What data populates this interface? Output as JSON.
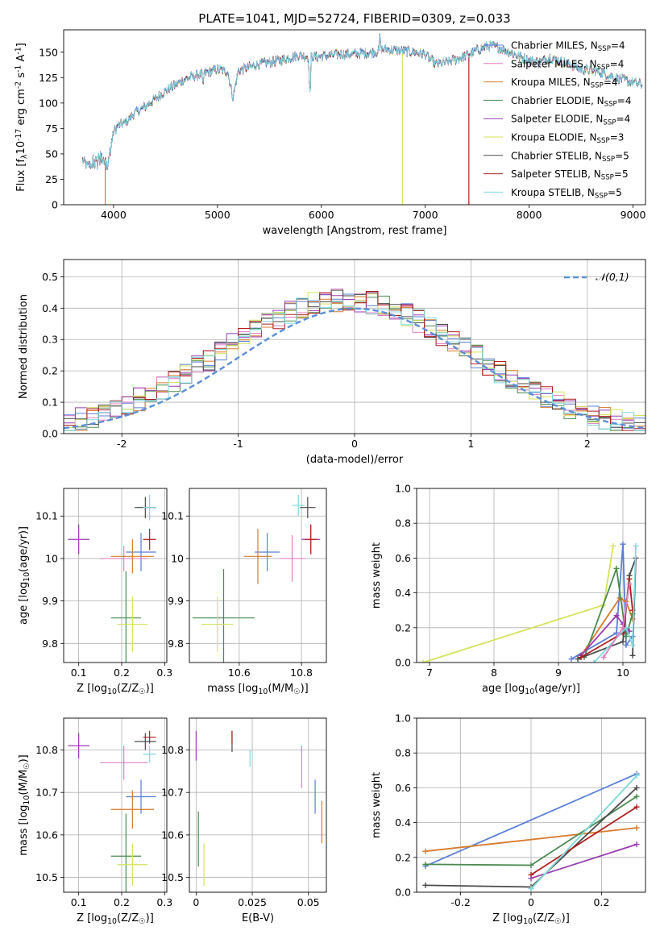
{
  "figure": {
    "title": "PLATE=1041, MJD=52724, FIBERID=0309, z=0.033"
  },
  "colors": {
    "Chabrier MILES": "#5b7fd6",
    "Salpeter MILES": "#e07fc0",
    "Kroupa MILES": "#d87a2a",
    "Chabrier ELODIE": "#4a8a50",
    "Salpeter ELODIE": "#9a3db0",
    "Kroupa ELODIE": "#d4e35a",
    "Chabrier STELIB": "#4a4a4a",
    "Salpeter STELIB": "#b01e1e",
    "Kroupa STELIB": "#7fd8e0",
    "gaussian": "#5b8fd6",
    "grid": "#b0b0b0"
  },
  "chart_data": [
    {
      "id": "spectrum",
      "type": "line",
      "title": "PLATE=1041, MJD=52724, FIBERID=0309, z=0.033",
      "xlabel": "wavelength [Angstrom, rest frame]",
      "ylabel": "Flux [f$_\\lambda$10$^{-17}$ erg cm$^{-2}$ s$^{-1}$ A$^{-1}$]",
      "xlim": [
        3520,
        9120
      ],
      "ylim": [
        0,
        172
      ],
      "xticks": [
        4000,
        5000,
        6000,
        7000,
        8000,
        9000
      ],
      "yticks": [
        0,
        25,
        50,
        75,
        100,
        125,
        150
      ],
      "grid": false,
      "legend_position": "top-right",
      "legend": [
        "Chabrier MILES, N$_{SSP}$=4",
        "Salpeter MILES, N$_{SSP}$=4",
        "Kroupa MILES, N$_{SSP}$=4",
        "Chabrier ELODIE, N$_{SSP}$=4",
        "Salpeter ELODIE, N$_{SSP}$=4",
        "Kroupa ELODIE, N$_{SSP}$=3",
        "Chabrier STELIB, N$_{SSP}$=5",
        "Salpeter STELIB, N$_{SSP}$=5",
        "Kroupa STELIB, N$_{SSP}$=5"
      ],
      "continuum": {
        "x": [
          3700,
          3750,
          3800,
          3850,
          3900,
          3950,
          4000,
          4050,
          4100,
          4150,
          4200,
          4300,
          4400,
          4500,
          4600,
          4700,
          4800,
          4900,
          5000,
          5100,
          5150,
          5200,
          5300,
          5400,
          5500,
          5600,
          5700,
          5800,
          5900,
          6000,
          6100,
          6200,
          6300,
          6400,
          6500,
          6600,
          6700,
          6800,
          6900,
          7000,
          7100,
          7200,
          7300,
          7400,
          7500,
          7600,
          7700,
          7800,
          7900,
          8000,
          8100,
          8200,
          8300,
          8400,
          8500,
          8600,
          8700,
          8800,
          8900,
          9000,
          9090
        ],
        "y": [
          44,
          38,
          40,
          43,
          44,
          42,
          72,
          78,
          80,
          84,
          90,
          96,
          104,
          112,
          118,
          124,
          127,
          130,
          133,
          131,
          105,
          132,
          135,
          138,
          140,
          142,
          145,
          147,
          145,
          146,
          147,
          148,
          148,
          149,
          150,
          153,
          152,
          151,
          150,
          148,
          138,
          140,
          143,
          147,
          152,
          156,
          155,
          151,
          146,
          142,
          140,
          145,
          141,
          138,
          133,
          132,
          130,
          126,
          123,
          120,
          118
        ]
      },
      "drops": [
        {
          "model": "Kroupa MILES",
          "x": 3920
        },
        {
          "model": "Kroupa ELODIE",
          "x": 6780
        },
        {
          "model": "Salpeter STELIB",
          "x": 7420
        }
      ]
    },
    {
      "id": "residuals",
      "type": "histogram",
      "xlabel": "(data-model)/error",
      "ylabel": "Normed distribution",
      "xlim": [
        -2.5,
        2.5
      ],
      "ylim": [
        0,
        0.555
      ],
      "xticks": [
        -2,
        -1,
        0,
        1,
        2
      ],
      "yticks": [
        0.0,
        0.1,
        0.2,
        0.3,
        0.4,
        0.5
      ],
      "grid": true,
      "legend_position": "top-right",
      "legend": [
        "$\\mathcal{N}(0,1)$"
      ],
      "bin_width": 0.1,
      "bin_start": -2.5
    },
    {
      "id": "age-Z",
      "type": "errorbar",
      "xlabel": "Z [log$_{10}$(Z/Z$_\\odot$)]",
      "ylabel": "age  [log$_{10}$(age/yr)]",
      "xlim": [
        0.065,
        0.305
      ],
      "ylim": [
        9.755,
        10.165
      ],
      "xticks": [
        0.1,
        0.2,
        0.3
      ],
      "yticks": [
        9.8,
        9.9,
        10.0,
        10.1
      ],
      "grid": true,
      "points": [
        {
          "model": "Chabrier MILES",
          "x": 0.245,
          "xerr": 0.035,
          "y": 10.015,
          "yerr": 0.045
        },
        {
          "model": "Salpeter MILES",
          "x": 0.205,
          "xerr": 0.055,
          "y": 10.0,
          "yerr": 0.03
        },
        {
          "model": "Kroupa MILES",
          "x": 0.225,
          "xerr": 0.05,
          "y": 10.005,
          "yerr": 0.04
        },
        {
          "model": "Chabrier ELODIE",
          "x": 0.21,
          "xerr": 0.035,
          "y": 9.86,
          "yerr": 0.11
        },
        {
          "model": "Salpeter ELODIE",
          "x": 0.1,
          "xerr": 0.025,
          "y": 10.045,
          "yerr": 0.035
        },
        {
          "model": "Kroupa ELODIE",
          "x": 0.225,
          "xerr": 0.035,
          "y": 9.845,
          "yerr": 0.065
        },
        {
          "model": "Chabrier STELIB",
          "x": 0.255,
          "xerr": 0.025,
          "y": 10.12,
          "yerr": 0.025
        },
        {
          "model": "Salpeter STELIB",
          "x": 0.265,
          "xerr": 0.015,
          "y": 10.045,
          "yerr": 0.025
        },
        {
          "model": "Kroupa STELIB",
          "x": 0.265,
          "xerr": 0.015,
          "y": 10.12,
          "yerr": 0.03
        }
      ]
    },
    {
      "id": "age-mass",
      "type": "errorbar",
      "xlabel": "mass [log$_{10}$(M/M$_\\odot$)]",
      "ylabel": "",
      "xlim": [
        10.44,
        10.88
      ],
      "ylim": [
        9.755,
        10.165
      ],
      "xticks": [
        10.6,
        10.8
      ],
      "yticks": [
        9.8,
        9.9,
        10.0,
        10.1
      ],
      "grid": true,
      "points": [
        {
          "model": "Chabrier MILES",
          "x": 10.69,
          "xerr": 0.04,
          "y": 10.015,
          "yerr": 0.045
        },
        {
          "model": "Salpeter MILES",
          "x": 10.77,
          "xerr": 0.04,
          "y": 10.0,
          "yerr": 0.055
        },
        {
          "model": "Kroupa MILES",
          "x": 10.66,
          "xerr": 0.045,
          "y": 10.005,
          "yerr": 0.065
        },
        {
          "model": "Chabrier ELODIE",
          "x": 10.55,
          "xerr": 0.1,
          "y": 9.86,
          "yerr": 0.115
        },
        {
          "model": "Salpeter ELODIE",
          "x": 10.83,
          "xerr": 0.03,
          "y": 10.045,
          "yerr": 0.035
        },
        {
          "model": "Kroupa ELODIE",
          "x": 10.53,
          "xerr": 0.05,
          "y": 9.845,
          "yerr": 0.065
        },
        {
          "model": "Chabrier STELIB",
          "x": 10.82,
          "xerr": 0.025,
          "y": 10.12,
          "yerr": 0.025
        },
        {
          "model": "Salpeter STELIB",
          "x": 10.83,
          "xerr": 0.02,
          "y": 10.045,
          "yerr": 0.035
        },
        {
          "model": "Kroupa STELIB",
          "x": 10.79,
          "xerr": 0.02,
          "y": 10.125,
          "yerr": 0.025
        }
      ]
    },
    {
      "id": "mass-Z",
      "type": "errorbar",
      "xlabel": "Z [log$_{10}$(Z/Z$_\\odot$)]",
      "ylabel": "mass [log$_{10}$(M/M$_\\odot$)]",
      "xlim": [
        0.065,
        0.305
      ],
      "ylim": [
        10.465,
        10.875
      ],
      "xticks": [
        0.1,
        0.2,
        0.3
      ],
      "yticks": [
        10.5,
        10.6,
        10.7,
        10.8
      ],
      "grid": true,
      "points": [
        {
          "model": "Chabrier MILES",
          "x": 0.245,
          "xerr": 0.035,
          "y": 10.69,
          "yerr": 0.04
        },
        {
          "model": "Salpeter MILES",
          "x": 0.205,
          "xerr": 0.055,
          "y": 10.77,
          "yerr": 0.04
        },
        {
          "model": "Kroupa MILES",
          "x": 0.225,
          "xerr": 0.05,
          "y": 10.66,
          "yerr": 0.045
        },
        {
          "model": "Chabrier ELODIE",
          "x": 0.21,
          "xerr": 0.035,
          "y": 10.55,
          "yerr": 0.1
        },
        {
          "model": "Salpeter ELODIE",
          "x": 0.1,
          "xerr": 0.025,
          "y": 10.81,
          "yerr": 0.03
        },
        {
          "model": "Kroupa ELODIE",
          "x": 0.225,
          "xerr": 0.035,
          "y": 10.53,
          "yerr": 0.05
        },
        {
          "model": "Chabrier STELIB",
          "x": 0.255,
          "xerr": 0.025,
          "y": 10.82,
          "yerr": 0.02
        },
        {
          "model": "Salpeter STELIB",
          "x": 0.265,
          "xerr": 0.015,
          "y": 10.83,
          "yerr": 0.015
        },
        {
          "model": "Kroupa STELIB",
          "x": 0.265,
          "xerr": 0.015,
          "y": 10.79,
          "yerr": 0.02
        }
      ]
    },
    {
      "id": "mass-ebv",
      "type": "errorbar",
      "xlabel": "E(B-V)",
      "ylabel": "",
      "xlim": [
        -0.003,
        0.058
      ],
      "ylim": [
        10.465,
        10.875
      ],
      "xticks": [
        0.0,
        0.025,
        0.05
      ],
      "yticks": [
        10.5,
        10.6,
        10.7,
        10.8
      ],
      "grid": true,
      "points": [
        {
          "model": "Chabrier MILES",
          "x": 0.053,
          "y": 10.69,
          "yerr": 0.04
        },
        {
          "model": "Salpeter MILES",
          "x": 0.047,
          "y": 10.76,
          "yerr": 0.05
        },
        {
          "model": "Kroupa MILES",
          "x": 0.056,
          "y": 10.63,
          "yerr": 0.05
        },
        {
          "model": "Chabrier ELODIE",
          "x": 0.001,
          "y": 10.59,
          "yerr": 0.065
        },
        {
          "model": "Salpeter ELODIE",
          "x": 0.0,
          "y": 10.81,
          "yerr": 0.035
        },
        {
          "model": "Kroupa ELODIE",
          "x": 0.0035,
          "y": 10.53,
          "yerr": 0.05
        },
        {
          "model": "Chabrier STELIB",
          "x": 0.016,
          "y": 10.82,
          "yerr": 0.025
        },
        {
          "model": "Salpeter STELIB",
          "x": 0.016,
          "y": 10.83,
          "yerr": 0.015
        },
        {
          "model": "Kroupa STELIB",
          "x": 0.024,
          "y": 10.78,
          "yerr": 0.02
        }
      ]
    },
    {
      "id": "mw-age",
      "type": "line",
      "xlabel": "age  [log$_{10}$(age/yr)]",
      "ylabel": "mass weight",
      "xlim": [
        6.8,
        10.35
      ],
      "ylim": [
        0,
        1.0
      ],
      "xticks": [
        7,
        8,
        9,
        10
      ],
      "yticks": [
        0.0,
        0.2,
        0.4,
        0.6,
        0.8,
        1.0
      ],
      "grid": true,
      "series": [
        {
          "name": "Kroupa ELODIE",
          "x": [
            6.9,
            9.7,
            9.85
          ],
          "y": [
            0.0,
            0.33,
            0.67
          ]
        },
        {
          "name": "Chabrier MILES",
          "x": [
            9.2,
            9.9,
            10.0,
            10.05,
            10.15
          ],
          "y": [
            0.02,
            0.17,
            0.68,
            0.1,
            0.15
          ]
        },
        {
          "name": "Kroupa MILES",
          "x": [
            9.35,
            9.95,
            10.05,
            10.15
          ],
          "y": [
            0.04,
            0.37,
            0.35,
            0.25
          ]
        },
        {
          "name": "Chabrier ELODIE",
          "x": [
            9.4,
            9.9,
            10.05,
            10.15
          ],
          "y": [
            0.03,
            0.54,
            0.15,
            0.28
          ]
        },
        {
          "name": "Salpeter ELODIE",
          "x": [
            9.35,
            9.9,
            10.0,
            10.1
          ],
          "y": [
            0.04,
            0.27,
            0.22,
            0.18
          ]
        },
        {
          "name": "Chabrier STELIB",
          "x": [
            9.3,
            10.0,
            10.1,
            10.2,
            10.15
          ],
          "y": [
            0.02,
            0.12,
            0.5,
            0.6,
            0.04
          ]
        },
        {
          "name": "Salpeter STELIB",
          "x": [
            9.35,
            10.0,
            10.1,
            10.15
          ],
          "y": [
            0.03,
            0.17,
            0.48,
            0.3
          ]
        },
        {
          "name": "Kroupa STELIB",
          "x": [
            9.55,
            10.05,
            10.15,
            10.2
          ],
          "y": [
            0.0,
            0.2,
            0.1,
            0.67
          ]
        },
        {
          "name": "Salpeter MILES",
          "x": [
            9.7,
            10.0,
            10.1
          ],
          "y": [
            0.03,
            0.2,
            0.45
          ]
        }
      ]
    },
    {
      "id": "mw-Z",
      "type": "line",
      "xlabel": "Z [log$_{10}$(Z/Z$_\\odot$)]",
      "ylabel": "mass weight",
      "xlim": [
        -0.325,
        0.325
      ],
      "ylim": [
        0,
        1.0
      ],
      "xticks": [
        -0.2,
        0.0,
        0.2
      ],
      "yticks": [
        0.0,
        0.2,
        0.4,
        0.6,
        0.8,
        1.0
      ],
      "grid": true,
      "series": [
        {
          "name": "Chabrier MILES",
          "x": [
            -0.3,
            0.3
          ],
          "y": [
            0.15,
            0.68
          ]
        },
        {
          "name": "Kroupa MILES",
          "x": [
            -0.3,
            0.3
          ],
          "y": [
            0.235,
            0.37
          ]
        },
        {
          "name": "Chabrier ELODIE",
          "x": [
            -0.3,
            0.0,
            0.3
          ],
          "y": [
            0.16,
            0.155,
            0.55
          ]
        },
        {
          "name": "Chabrier STELIB",
          "x": [
            -0.3,
            0.0,
            0.3
          ],
          "y": [
            0.04,
            0.03,
            0.6
          ]
        },
        {
          "name": "Salpeter STELIB",
          "x": [
            0.0,
            0.3
          ],
          "y": [
            0.1,
            0.49
          ]
        },
        {
          "name": "Salpeter ELODIE",
          "x": [
            0.0,
            0.3
          ],
          "y": [
            0.08,
            0.275
          ]
        },
        {
          "name": "Kroupa ELODIE",
          "x": [
            0.0,
            0.3
          ],
          "y": [
            0.02,
            0.67
          ]
        },
        {
          "name": "Kroupa STELIB",
          "x": [
            0.0,
            0.3
          ],
          "y": [
            0.02,
            0.67
          ]
        }
      ]
    }
  ]
}
